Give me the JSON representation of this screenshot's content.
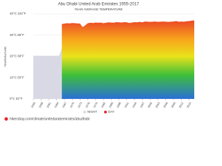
{
  "chart_data": {
    "type": "area",
    "title": "Abu Dhabi United Arab Emirates 1955-2017",
    "subtitle": "YEAR AVERAGE TEMPERATURE",
    "y_label": "TEMPERATURE",
    "x": [
      1955,
      1956,
      1957,
      1958,
      1959,
      1960,
      1961,
      1962,
      1963,
      1964,
      1965,
      1966,
      1967,
      1968,
      1969,
      1970,
      1971,
      1972,
      1973,
      1974,
      1975,
      1976,
      1977,
      1978,
      1979,
      1980,
      1981,
      1982,
      1983,
      1984,
      1985,
      1986,
      1987,
      1988,
      1989,
      1990,
      1991,
      1992,
      1993,
      1994,
      1995,
      1996,
      1997,
      1998,
      1999,
      2000,
      2001,
      2002,
      2003,
      2004,
      2005,
      2006,
      2007,
      2008,
      2009,
      2010,
      2011,
      2012,
      2013,
      2014,
      2015,
      2016,
      2017
    ],
    "series": [
      {
        "name": "NIGHT",
        "color": "#d9d9e6",
        "values": [
          20.3,
          20.3,
          20.3,
          20.3,
          20.3,
          20.3,
          20.3,
          20.3,
          20.3,
          20.3,
          20.4,
          24.0,
          24.1,
          24.2,
          24.1,
          24.3,
          24.2,
          24.1,
          24.0,
          23.4,
          23.8,
          24.2,
          24.3,
          24.2,
          24.4,
          24.3,
          24.4,
          24.1,
          24.3,
          24.5,
          24.4,
          24.3,
          24.6,
          24.5,
          24.4,
          24.6,
          24.5,
          24.2,
          24.4,
          24.6,
          24.5,
          24.7,
          24.5,
          24.9,
          24.8,
          24.7,
          24.8,
          24.9,
          24.7,
          24.8,
          24.9,
          24.8,
          24.7,
          24.8,
          24.9,
          25.1,
          24.8,
          24.9,
          24.8,
          25.0,
          25.1,
          25.3,
          25.4
        ]
      },
      {
        "name": "DAY",
        "color": "#e8262a",
        "values": [
          null,
          null,
          null,
          null,
          null,
          null,
          null,
          null,
          null,
          null,
          null,
          35.2,
          35.4,
          35.6,
          35.5,
          35.7,
          35.6,
          35.5,
          35.4,
          33.8,
          34.6,
          35.6,
          35.8,
          35.7,
          35.9,
          35.8,
          35.9,
          35.6,
          35.8,
          36.0,
          35.9,
          35.8,
          36.1,
          36.0,
          35.9,
          36.1,
          36.0,
          35.7,
          35.9,
          36.1,
          36.0,
          36.2,
          36.0,
          36.4,
          36.3,
          36.2,
          36.3,
          36.4,
          36.2,
          36.3,
          36.4,
          36.3,
          36.2,
          36.3,
          36.4,
          36.6,
          36.3,
          36.4,
          36.3,
          36.5,
          36.6,
          36.8,
          36.9
        ]
      }
    ],
    "xlim": [
      1955,
      2017
    ],
    "xticks": [
      1955,
      1958,
      1961,
      1964,
      1967,
      1970,
      1973,
      1976,
      1979,
      1982,
      1985,
      1988,
      1991,
      1994,
      1997,
      2000,
      2003,
      2006,
      2009,
      2012,
      2015
    ],
    "ylim": [
      0,
      40
    ],
    "yticks": [
      {
        "value": 0,
        "label": "0°C 32°F"
      },
      {
        "value": 10,
        "label": "10°C 50°F"
      },
      {
        "value": 20,
        "label": "20°C 68°F"
      },
      {
        "value": 30,
        "label": "30°C 86°F"
      },
      {
        "value": 40,
        "label": "40°C 104°F"
      }
    ],
    "grid": true,
    "footer": "hikersbay.com/climate/unitedarabemirates/abudhabi"
  }
}
